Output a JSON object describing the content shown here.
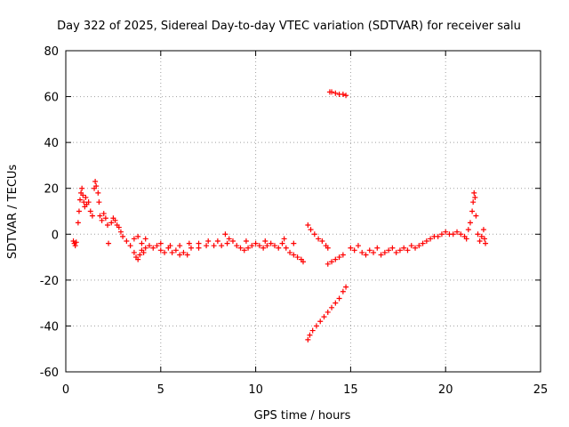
{
  "chart_data": {
    "type": "scatter",
    "title": "Day 322 of 2025, Sidereal Day-to-day VTEC variation (SDTVAR) for receiver salu",
    "xlabel": "GPS time / hours",
    "ylabel": "SDTVAR / TECUs",
    "xlim": [
      0,
      25
    ],
    "ylim": [
      -60,
      80
    ],
    "xticks": [
      0,
      5,
      10,
      15,
      20,
      25
    ],
    "yticks": [
      -60,
      -40,
      -20,
      0,
      20,
      40,
      60,
      80
    ],
    "xtick_labels": [
      "0",
      "5",
      "10",
      "15",
      "20",
      "25"
    ],
    "ytick_labels": [
      "-60",
      "-40",
      "-20",
      "0",
      "20",
      "40",
      "60",
      "80"
    ],
    "grid": true,
    "marker": "+",
    "color": "#ff0000",
    "series": [
      {
        "name": "SDTVAR",
        "points": [
          [
            0.4,
            -3
          ],
          [
            0.45,
            -4
          ],
          [
            0.5,
            -5
          ],
          [
            0.55,
            -3.5
          ],
          [
            0.65,
            5
          ],
          [
            0.7,
            10
          ],
          [
            0.75,
            15
          ],
          [
            0.8,
            18
          ],
          [
            0.85,
            20
          ],
          [
            0.9,
            17
          ],
          [
            0.95,
            14
          ],
          [
            1.0,
            12
          ],
          [
            1.05,
            16
          ],
          [
            1.1,
            13
          ],
          [
            1.2,
            14
          ],
          [
            1.3,
            10
          ],
          [
            1.4,
            8
          ],
          [
            1.5,
            20
          ],
          [
            1.55,
            23
          ],
          [
            1.6,
            21
          ],
          [
            1.7,
            18
          ],
          [
            1.75,
            14
          ],
          [
            1.8,
            8
          ],
          [
            1.9,
            6
          ],
          [
            2.0,
            9
          ],
          [
            2.1,
            7
          ],
          [
            2.2,
            4
          ],
          [
            2.25,
            -4
          ],
          [
            2.4,
            5
          ],
          [
            2.5,
            7
          ],
          [
            2.6,
            6
          ],
          [
            2.7,
            4
          ],
          [
            2.8,
            3
          ],
          [
            2.9,
            1
          ],
          [
            3.0,
            -1
          ],
          [
            3.2,
            -3
          ],
          [
            3.4,
            -5
          ],
          [
            3.6,
            -8
          ],
          [
            3.7,
            -10
          ],
          [
            3.8,
            -11
          ],
          [
            3.9,
            -9
          ],
          [
            4.0,
            -7
          ],
          [
            4.1,
            -8
          ],
          [
            4.2,
            -6
          ],
          [
            3.6,
            -2
          ],
          [
            3.8,
            -1
          ],
          [
            4.0,
            -4
          ],
          [
            4.2,
            -2
          ],
          [
            4.4,
            -5
          ],
          [
            4.6,
            -6
          ],
          [
            4.8,
            -5
          ],
          [
            5.0,
            -7
          ],
          [
            5.2,
            -8
          ],
          [
            5.4,
            -6
          ],
          [
            5.6,
            -8
          ],
          [
            5.8,
            -7
          ],
          [
            6.0,
            -9
          ],
          [
            6.2,
            -8
          ],
          [
            6.4,
            -9
          ],
          [
            5.0,
            -4
          ],
          [
            5.5,
            -5
          ],
          [
            6.0,
            -5
          ],
          [
            6.5,
            -4
          ],
          [
            7.0,
            -4
          ],
          [
            7.5,
            -3
          ],
          [
            8.0,
            -3
          ],
          [
            8.5,
            -4
          ],
          [
            6.6,
            -6
          ],
          [
            7.0,
            -6
          ],
          [
            7.4,
            -5
          ],
          [
            7.8,
            -5
          ],
          [
            8.2,
            -5
          ],
          [
            8.4,
            0
          ],
          [
            8.6,
            -2
          ],
          [
            8.8,
            -3
          ],
          [
            9.0,
            -5
          ],
          [
            9.2,
            -6
          ],
          [
            9.4,
            -7
          ],
          [
            9.6,
            -6
          ],
          [
            9.8,
            -5
          ],
          [
            10.0,
            -4
          ],
          [
            10.2,
            -5
          ],
          [
            10.4,
            -6
          ],
          [
            10.6,
            -5
          ],
          [
            10.8,
            -4
          ],
          [
            11.0,
            -5
          ],
          [
            11.2,
            -6
          ],
          [
            11.4,
            -4
          ],
          [
            11.6,
            -6
          ],
          [
            11.8,
            -8
          ],
          [
            12.0,
            -9
          ],
          [
            12.2,
            -10
          ],
          [
            12.4,
            -11
          ],
          [
            12.5,
            -12
          ],
          [
            9.5,
            -3
          ],
          [
            10.5,
            -3
          ],
          [
            11.5,
            -2
          ],
          [
            12.0,
            -4
          ],
          [
            12.75,
            4
          ],
          [
            12.9,
            2
          ],
          [
            13.1,
            0
          ],
          [
            13.3,
            -2
          ],
          [
            13.5,
            -3
          ],
          [
            13.7,
            -5
          ],
          [
            13.8,
            -6
          ],
          [
            12.75,
            -46
          ],
          [
            12.85,
            -44
          ],
          [
            13.0,
            -42
          ],
          [
            13.2,
            -40
          ],
          [
            13.4,
            -38
          ],
          [
            13.6,
            -36
          ],
          [
            13.8,
            -34
          ],
          [
            14.0,
            -32
          ],
          [
            14.2,
            -30
          ],
          [
            14.4,
            -28
          ],
          [
            14.6,
            -25
          ],
          [
            14.75,
            -23
          ],
          [
            13.9,
            62
          ],
          [
            14.0,
            62
          ],
          [
            14.2,
            61.5
          ],
          [
            14.4,
            61
          ],
          [
            14.6,
            61
          ],
          [
            14.75,
            60.5
          ],
          [
            13.8,
            -13
          ],
          [
            14.0,
            -12
          ],
          [
            14.2,
            -11
          ],
          [
            14.4,
            -10
          ],
          [
            14.6,
            -9
          ],
          [
            15.0,
            -6
          ],
          [
            15.2,
            -7
          ],
          [
            15.4,
            -5
          ],
          [
            15.6,
            -8
          ],
          [
            15.8,
            -9
          ],
          [
            16.0,
            -7
          ],
          [
            16.2,
            -8
          ],
          [
            16.4,
            -6
          ],
          [
            16.6,
            -9
          ],
          [
            16.8,
            -8
          ],
          [
            17.0,
            -7
          ],
          [
            17.2,
            -6
          ],
          [
            17.4,
            -8
          ],
          [
            17.6,
            -7
          ],
          [
            17.8,
            -6
          ],
          [
            18.0,
            -7
          ],
          [
            18.2,
            -5
          ],
          [
            18.4,
            -6
          ],
          [
            18.6,
            -5
          ],
          [
            18.8,
            -4
          ],
          [
            19.0,
            -3
          ],
          [
            19.2,
            -2
          ],
          [
            19.4,
            -1
          ],
          [
            19.6,
            -1
          ],
          [
            19.8,
            0
          ],
          [
            20.0,
            1
          ],
          [
            20.2,
            0
          ],
          [
            20.4,
            0
          ],
          [
            20.6,
            1
          ],
          [
            20.8,
            0
          ],
          [
            21.0,
            -1
          ],
          [
            21.1,
            -2
          ],
          [
            21.2,
            2
          ],
          [
            21.3,
            5
          ],
          [
            21.4,
            10
          ],
          [
            21.45,
            14
          ],
          [
            21.5,
            18
          ],
          [
            21.55,
            16
          ],
          [
            21.6,
            8
          ],
          [
            21.7,
            0
          ],
          [
            21.8,
            -3
          ],
          [
            21.9,
            -1
          ],
          [
            22.0,
            2
          ],
          [
            22.05,
            -2
          ],
          [
            22.1,
            -4
          ]
        ]
      }
    ]
  }
}
